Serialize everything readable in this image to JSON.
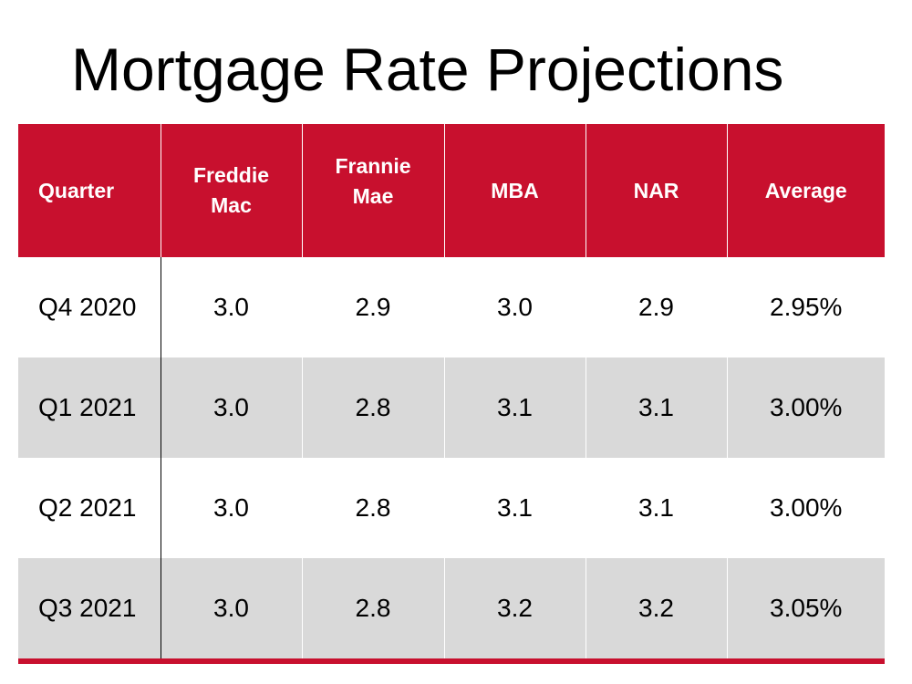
{
  "title": "Mortgage Rate Projections",
  "colors": {
    "header_bg": "#c8102e",
    "header_text": "#ffffff",
    "row_alt_bg": "#d9d9d9",
    "bottom_rule": "#c8102e"
  },
  "table": {
    "headers": [
      [
        "Quarter"
      ],
      [
        "Freddie",
        "Mac"
      ],
      [
        "Frannie",
        "Mae"
      ],
      [
        "MBA"
      ],
      [
        "NAR"
      ],
      [
        "Average"
      ]
    ],
    "rows": [
      [
        "Q4 2020",
        "3.0",
        "2.9",
        "3.0",
        "2.9",
        "2.95%"
      ],
      [
        "Q1 2021",
        "3.0",
        "2.8",
        "3.1",
        "3.1",
        "3.00%"
      ],
      [
        "Q2 2021",
        "3.0",
        "2.8",
        "3.1",
        "3.1",
        "3.00%"
      ],
      [
        "Q3 2021",
        "3.0",
        "2.8",
        "3.2",
        "3.2",
        "3.05%"
      ]
    ]
  }
}
